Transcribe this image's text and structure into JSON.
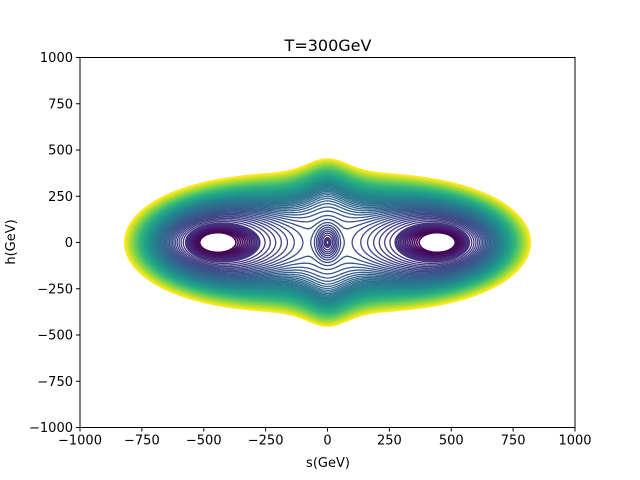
{
  "chart_data": {
    "type": "contour",
    "title": "T=300GeV",
    "xlabel": "s(GeV)",
    "ylabel": "h(GeV)",
    "xlim": [
      -1000,
      1000
    ],
    "ylim": [
      -1000,
      1000
    ],
    "xticks": [
      -1000,
      -750,
      -500,
      -250,
      0,
      250,
      500,
      750,
      1000
    ],
    "yticks": [
      -1000,
      -750,
      -500,
      -250,
      0,
      250,
      500,
      750,
      1000
    ],
    "xtick_labels": [
      "−1000",
      "−750",
      "−500",
      "−250",
      "0",
      "250",
      "500",
      "750",
      "1000"
    ],
    "ytick_labels": [
      "−1000",
      "−750",
      "−500",
      "−250",
      "0",
      "250",
      "500",
      "750",
      "1000"
    ],
    "grid": false,
    "colormap": "viridis",
    "colormap_stops": [
      "#440154",
      "#482878",
      "#3e4989",
      "#31688e",
      "#26828e",
      "#1f9e89",
      "#35b779",
      "#6ece58",
      "#b5de2b",
      "#fde725"
    ],
    "minima": [
      {
        "s": -380,
        "h": 0
      },
      {
        "s": 380,
        "h": 0
      }
    ],
    "central_feature": {
      "s": 0,
      "h": 0,
      "half_width_s": 30,
      "half_height_h": 60
    },
    "outer_contour_extent": {
      "s_half_width": 820,
      "h_half_height": 580
    },
    "inner_levels": 14,
    "outer_levels": 70
  }
}
